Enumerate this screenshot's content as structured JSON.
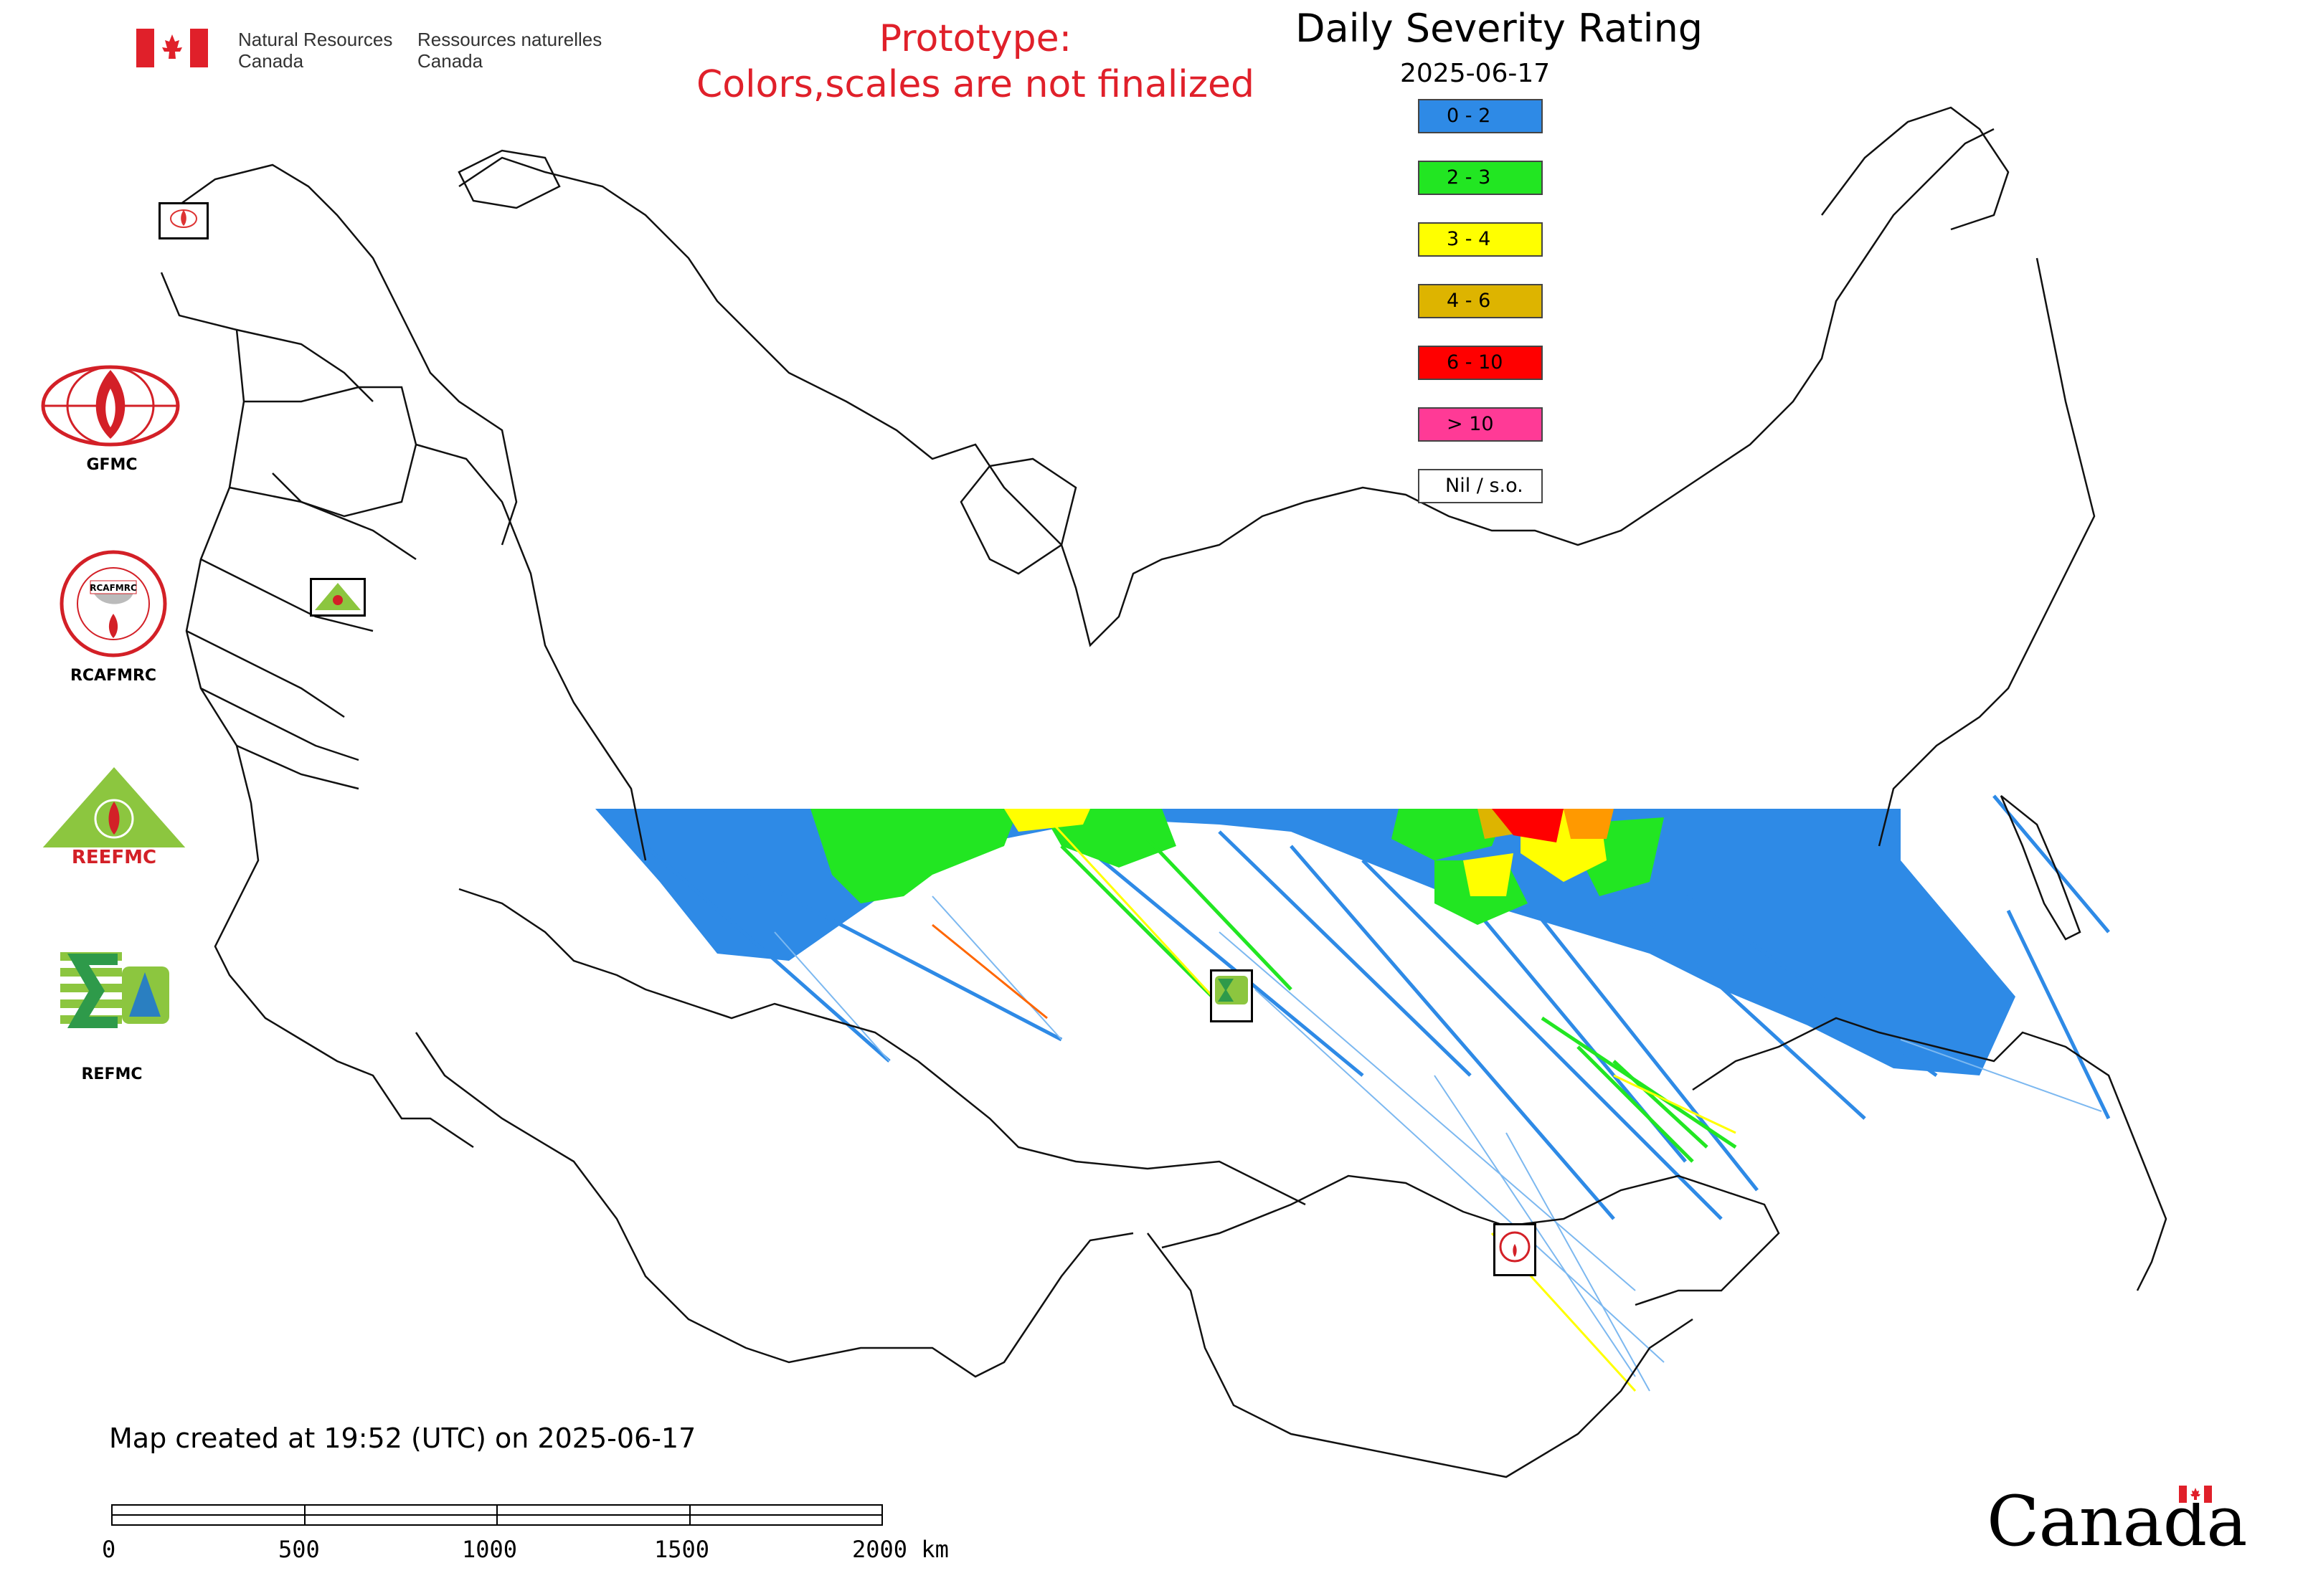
{
  "header": {
    "agency_en_line1": "Natural Resources",
    "agency_en_line2": "Canada",
    "agency_fr_line1": "Ressources naturelles",
    "agency_fr_line2": "Canada",
    "prototype_line1": "Prototype:",
    "prototype_line2": "Colors,scales are not finalized"
  },
  "map": {
    "title": "Daily Severity Rating",
    "date": "2025-06-17"
  },
  "legend": [
    {
      "label": "0 - 2",
      "color": "#2e8ae6"
    },
    {
      "label": "2 - 3",
      "color": "#22e622"
    },
    {
      "label": "3 - 4",
      "color": "#ffff00"
    },
    {
      "label": "4 - 6",
      "color": "#ddb400"
    },
    {
      "label": "6 - 10",
      "color": "#ff0000"
    },
    {
      "label": "> 10",
      "color": "#ff3a96"
    },
    {
      "label": "Nil / s.o.",
      "color": "#ffffff"
    }
  ],
  "logos": {
    "gfmc": "GFMC",
    "rcafmrc": "RCAFMRC",
    "reefmc": "REEFMC",
    "refmc": "REFMC",
    "reefmc_mark": "REEFMC",
    "rcafmrc_ring": "RCAFMRC"
  },
  "footer": {
    "created_text": "Map created at 19:52 (UTC) on 2025-06-17",
    "scale_labels": [
      "0",
      "500",
      "1000",
      "1500",
      "2000 km"
    ],
    "wordmark": "Canada"
  },
  "colors": {
    "prototype_text": "#e0202a",
    "canada_red": "#e0202a",
    "border": "#000000"
  }
}
